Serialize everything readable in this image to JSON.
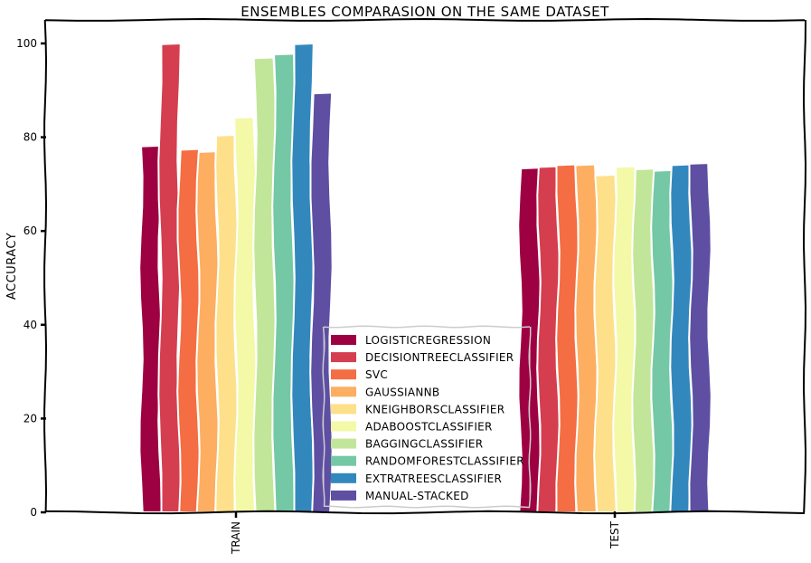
{
  "chart_data": {
    "type": "bar",
    "title": "ENSEMBLES COMPARASION ON THE SAME DATASET",
    "xlabel": "",
    "ylabel": "ACCURACY",
    "ylim": [
      0,
      105
    ],
    "yticks": [
      0,
      20,
      40,
      60,
      80,
      100
    ],
    "categories": [
      "TRAIN",
      "TEST"
    ],
    "legend_position": "center",
    "series": [
      {
        "name": "LOGISTICREGRESSION",
        "color": "#9e0142",
        "values": [
          78.2,
          73.5
        ]
      },
      {
        "name": "DECISIONTREECLASSIFIER",
        "color": "#d53e4f",
        "values": [
          100.0,
          73.8
        ]
      },
      {
        "name": "SVC",
        "color": "#f46d43",
        "values": [
          77.5,
          74.2
        ]
      },
      {
        "name": "GAUSSIANNB",
        "color": "#fdae61",
        "values": [
          77.0,
          74.2
        ]
      },
      {
        "name": "KNEIGHBORSCLASSIFIER",
        "color": "#fee08b",
        "values": [
          80.5,
          72.0
        ]
      },
      {
        "name": "ADABOOSTCLASSIFIER",
        "color": "#f3f9a6",
        "values": [
          84.3,
          73.8
        ]
      },
      {
        "name": "BAGGINGCLASSIFIER",
        "color": "#c2e699",
        "values": [
          97.0,
          73.3
        ]
      },
      {
        "name": "RANDOMFORESTCLASSIFIER",
        "color": "#74c8a5",
        "values": [
          97.8,
          73.0
        ]
      },
      {
        "name": "EXTRATREESCLASSIFIER",
        "color": "#3288bd",
        "values": [
          100.0,
          74.2
        ]
      },
      {
        "name": "MANUAL-STACKED",
        "color": "#5e4fa2",
        "values": [
          89.5,
          74.5
        ]
      }
    ]
  }
}
